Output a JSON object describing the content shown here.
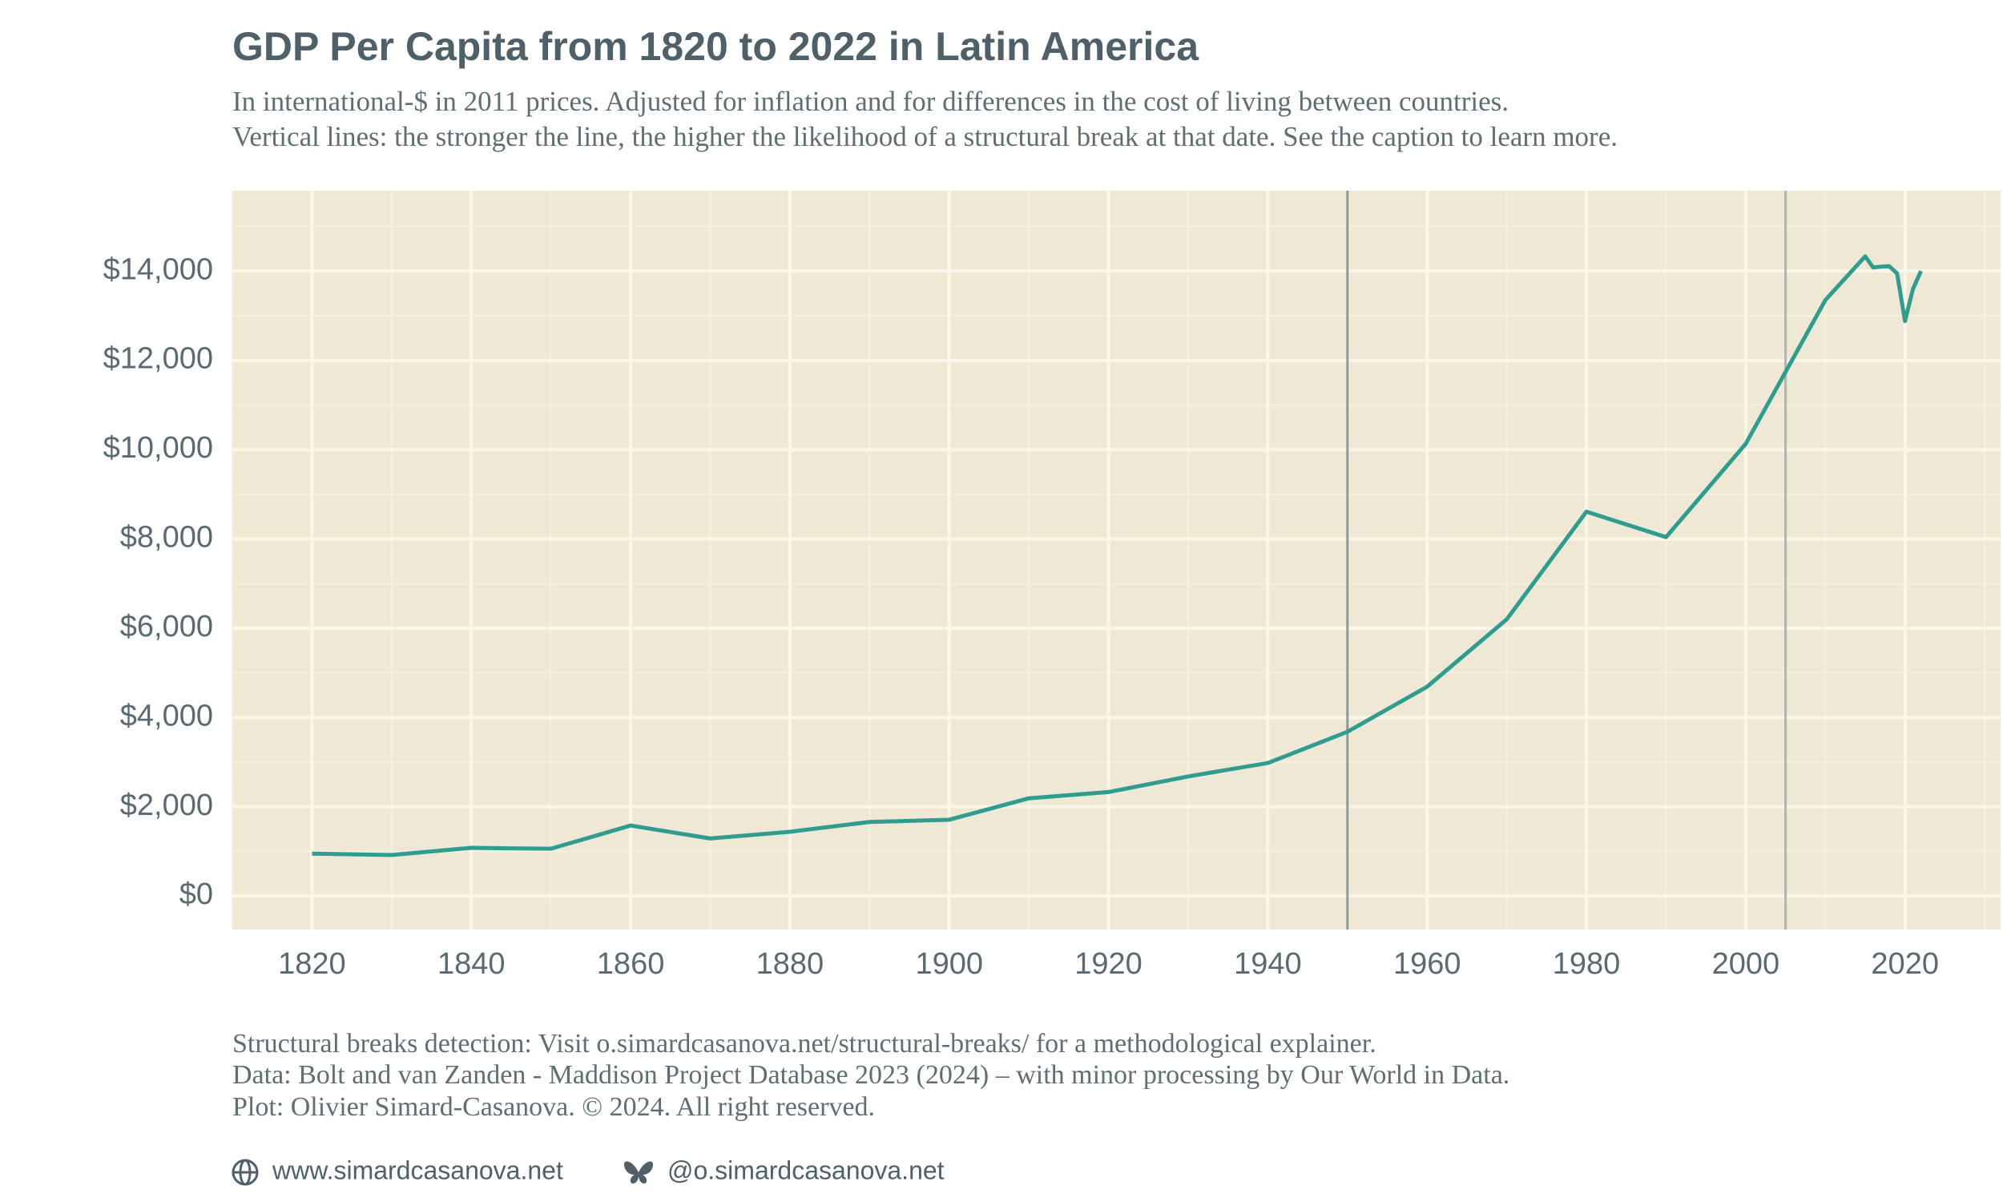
{
  "chart_data": {
    "type": "line",
    "title": "GDP Per Capita from 1820 to 2022 in Latin America",
    "subtitle": [
      "In international-$ in 2011 prices. Adjusted for inflation and for differences in the cost of living between countries.",
      "Vertical lines: the stronger the line, the higher the likelihood of a structural break at that date. See the caption to learn more."
    ],
    "x": [
      1820,
      1830,
      1840,
      1850,
      1860,
      1870,
      1880,
      1890,
      1900,
      1910,
      1920,
      1930,
      1940,
      1950,
      1960,
      1970,
      1980,
      1990,
      2000,
      2010,
      2015,
      2016,
      2017,
      2018,
      2019,
      2020,
      2021,
      2022
    ],
    "values": [
      950,
      920,
      1080,
      1060,
      1580,
      1290,
      1440,
      1660,
      1710,
      2190,
      2330,
      2680,
      2980,
      3680,
      4690,
      6200,
      8610,
      8040,
      10130,
      13350,
      14330,
      14080,
      14100,
      14110,
      13950,
      12880,
      13600,
      14000
    ],
    "color": "#2e9d90",
    "xlim": [
      1810,
      2032
    ],
    "ylim": [
      -750,
      15800
    ],
    "xticks": [
      1820,
      1840,
      1860,
      1880,
      1900,
      1920,
      1940,
      1960,
      1980,
      2000,
      2020
    ],
    "yticks": [
      {
        "value": 0,
        "label": "$0"
      },
      {
        "value": 2000,
        "label": "$2,000"
      },
      {
        "value": 4000,
        "label": "$4,000"
      },
      {
        "value": 6000,
        "label": "$6,000"
      },
      {
        "value": 8000,
        "label": "$8,000"
      },
      {
        "value": 10000,
        "label": "$10,000"
      },
      {
        "value": 12000,
        "label": "$12,000"
      },
      {
        "value": 14000,
        "label": "$14,000"
      }
    ],
    "grid": true,
    "break_lines": [
      {
        "x": 1950,
        "color": "#8c9b9a"
      },
      {
        "x": 2005,
        "color": "#aeb6b2"
      }
    ],
    "caption": [
      "Structural breaks detection: Visit o.simardcasanova.net/structural-breaks/ for a methodological explainer.",
      "Data: Bolt and van Zanden - Maddison Project Database 2023 (2024) – with minor processing by Our World in Data.",
      "Plot: Olivier Simard-Casanova. © 2024.  All right reserved."
    ],
    "links": [
      "www.simardcasanova.net",
      "@o.simardcasanova.net"
    ]
  }
}
